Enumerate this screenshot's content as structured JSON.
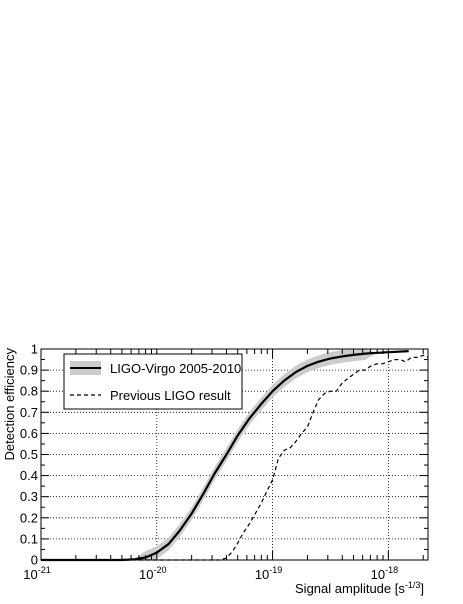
{
  "chart_data": {
    "type": "line",
    "title": "",
    "xlabel": "Signal amplitude [s",
    "xlabel_sup": "-1/3",
    "xlabel_close": "]",
    "ylabel": "Detection efficiency",
    "xscale": "log",
    "xlim": [
      1e-21,
      2.2e-18
    ],
    "ylim": [
      0,
      1
    ],
    "grid": true,
    "legend_position": "top-left",
    "x_ticks": [
      {
        "base": "10",
        "exp": "-21",
        "value": 1e-21
      },
      {
        "base": "10",
        "exp": "-20",
        "value": 1e-20
      },
      {
        "base": "10",
        "exp": "-19",
        "value": 1e-19
      },
      {
        "base": "10",
        "exp": "-18",
        "value": 1e-18
      }
    ],
    "y_ticks": [
      "0",
      "0.1",
      "0.2",
      "0.3",
      "0.4",
      "0.5",
      "0.6",
      "0.7",
      "0.8",
      "0.9",
      "1"
    ],
    "series": [
      {
        "name": "LIGO-Virgo 2005-2010",
        "style": "solid",
        "color": "#000000",
        "band_color": "#cccccc",
        "band_halfwidth": 0.03,
        "x": [
          1e-21,
          5e-21,
          6.3e-21,
          8e-21,
          1e-20,
          1.26e-20,
          1.58e-20,
          2e-20,
          2.5e-20,
          3.16e-20,
          4e-20,
          5e-20,
          6.3e-20,
          8e-20,
          1e-19,
          1.26e-19,
          1.58e-19,
          2e-19,
          2.5e-19,
          3.16e-19,
          4e-19,
          5e-19,
          6.3e-19,
          8e-19,
          1e-18,
          1.3e-18,
          1.5e-18
        ],
        "y": [
          0,
          0,
          0.003,
          0.012,
          0.035,
          0.075,
          0.14,
          0.22,
          0.31,
          0.41,
          0.5,
          0.59,
          0.67,
          0.74,
          0.8,
          0.85,
          0.89,
          0.92,
          0.94,
          0.955,
          0.965,
          0.972,
          0.978,
          0.982,
          0.985,
          0.988,
          0.99
        ]
      },
      {
        "name": "Previous LIGO result",
        "style": "dashed",
        "color": "#000000",
        "x": [
          1e-21,
          3.5e-20,
          4e-20,
          4.5e-20,
          5e-20,
          5.6e-20,
          6.3e-20,
          7.1e-20,
          8e-20,
          9e-20,
          1e-19,
          1.12e-19,
          1.26e-19,
          1.41e-19,
          1.58e-19,
          1.78e-19,
          2e-19,
          2.24e-19,
          2.5e-19,
          2.82e-19,
          3.16e-19,
          3.55e-19,
          4e-19,
          4.47e-19,
          5e-19,
          5.62e-19,
          6.3e-19,
          7.08e-19,
          8e-19,
          8.9e-19,
          1e-18,
          1.12e-18,
          1.26e-18,
          1.41e-18,
          1.58e-18,
          1.78e-18,
          2e-18,
          2.2e-18
        ],
        "y": [
          0,
          0,
          0.01,
          0.04,
          0.08,
          0.13,
          0.17,
          0.22,
          0.27,
          0.33,
          0.38,
          0.48,
          0.52,
          0.53,
          0.56,
          0.6,
          0.63,
          0.7,
          0.76,
          0.79,
          0.8,
          0.8,
          0.84,
          0.86,
          0.88,
          0.9,
          0.9,
          0.92,
          0.93,
          0.93,
          0.94,
          0.95,
          0.95,
          0.94,
          0.96,
          0.96,
          0.97,
          0.96
        ]
      }
    ]
  }
}
